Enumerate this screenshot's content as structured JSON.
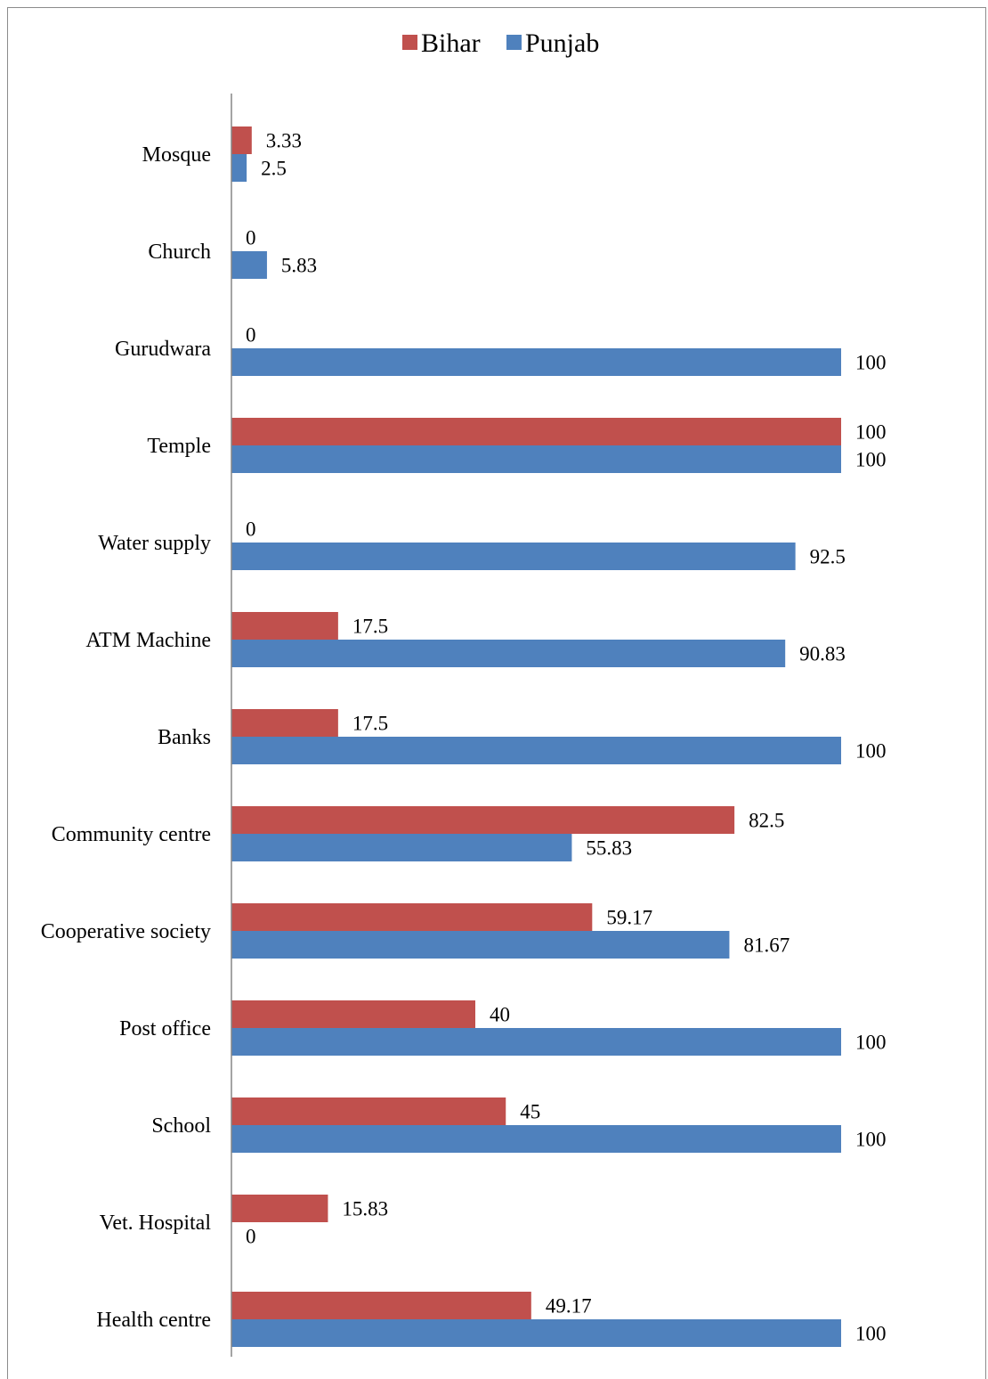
{
  "chart_data": {
    "type": "bar",
    "orientation": "horizontal",
    "categories": [
      "Mosque",
      "Church",
      "Gurudwara",
      "Temple",
      "Water supply",
      "ATM Machine",
      "Banks",
      "Community centre",
      "Cooperative society",
      "Post office",
      "School",
      "Vet. Hospital",
      "Health centre"
    ],
    "series": [
      {
        "name": "Bihar",
        "color": "#c0504d",
        "values": [
          3.33,
          0,
          0,
          100,
          0,
          17.5,
          17.5,
          82.5,
          59.17,
          40,
          45,
          15.83,
          49.17
        ],
        "labels": [
          "3.33",
          "0",
          "0",
          "100",
          "0",
          "17.5",
          "17.5",
          "82.5",
          "59.17",
          "40",
          "45",
          "15.83",
          "49.17"
        ]
      },
      {
        "name": "Punjab",
        "color": "#4f81bd",
        "values": [
          2.5,
          5.83,
          100,
          100,
          92.5,
          90.83,
          100,
          55.83,
          81.67,
          100,
          100,
          0,
          100
        ],
        "labels": [
          "2.5",
          "5.83",
          "100",
          "100",
          "92.5",
          "90.83",
          "100",
          "55.83",
          "81.67",
          "100",
          "100",
          "0",
          "100"
        ]
      }
    ],
    "xlim": [
      0,
      100
    ],
    "grid": false,
    "legend": "top-center",
    "data_labels": true
  }
}
